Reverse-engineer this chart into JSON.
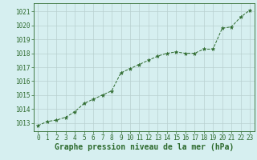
{
  "x": [
    0,
    1,
    2,
    3,
    4,
    5,
    6,
    7,
    8,
    9,
    10,
    11,
    12,
    13,
    14,
    15,
    16,
    17,
    18,
    19,
    20,
    21,
    22,
    23
  ],
  "y": [
    1012.8,
    1013.1,
    1013.2,
    1013.4,
    1013.8,
    1014.4,
    1014.7,
    1015.0,
    1015.3,
    1016.6,
    1016.9,
    1017.2,
    1017.5,
    1017.8,
    1018.0,
    1018.1,
    1018.0,
    1018.0,
    1018.3,
    1018.3,
    1019.8,
    1019.9,
    1020.6,
    1021.1
  ],
  "line_color": "#2d6a2d",
  "marker": "*",
  "marker_size": 3.5,
  "bg_color": "#d6eff0",
  "grid_color": "#b8d0d0",
  "ylabel_ticks": [
    1013,
    1014,
    1015,
    1016,
    1017,
    1018,
    1019,
    1020,
    1021
  ],
  "xlabel": "Graphe pression niveau de la mer (hPa)",
  "ylim": [
    1012.4,
    1021.6
  ],
  "xlim": [
    -0.5,
    23.5
  ],
  "xlabel_fontsize": 7,
  "tick_fontsize": 5.5,
  "tick_color": "#2d6a2d",
  "axis_color": "#2d6a2d"
}
